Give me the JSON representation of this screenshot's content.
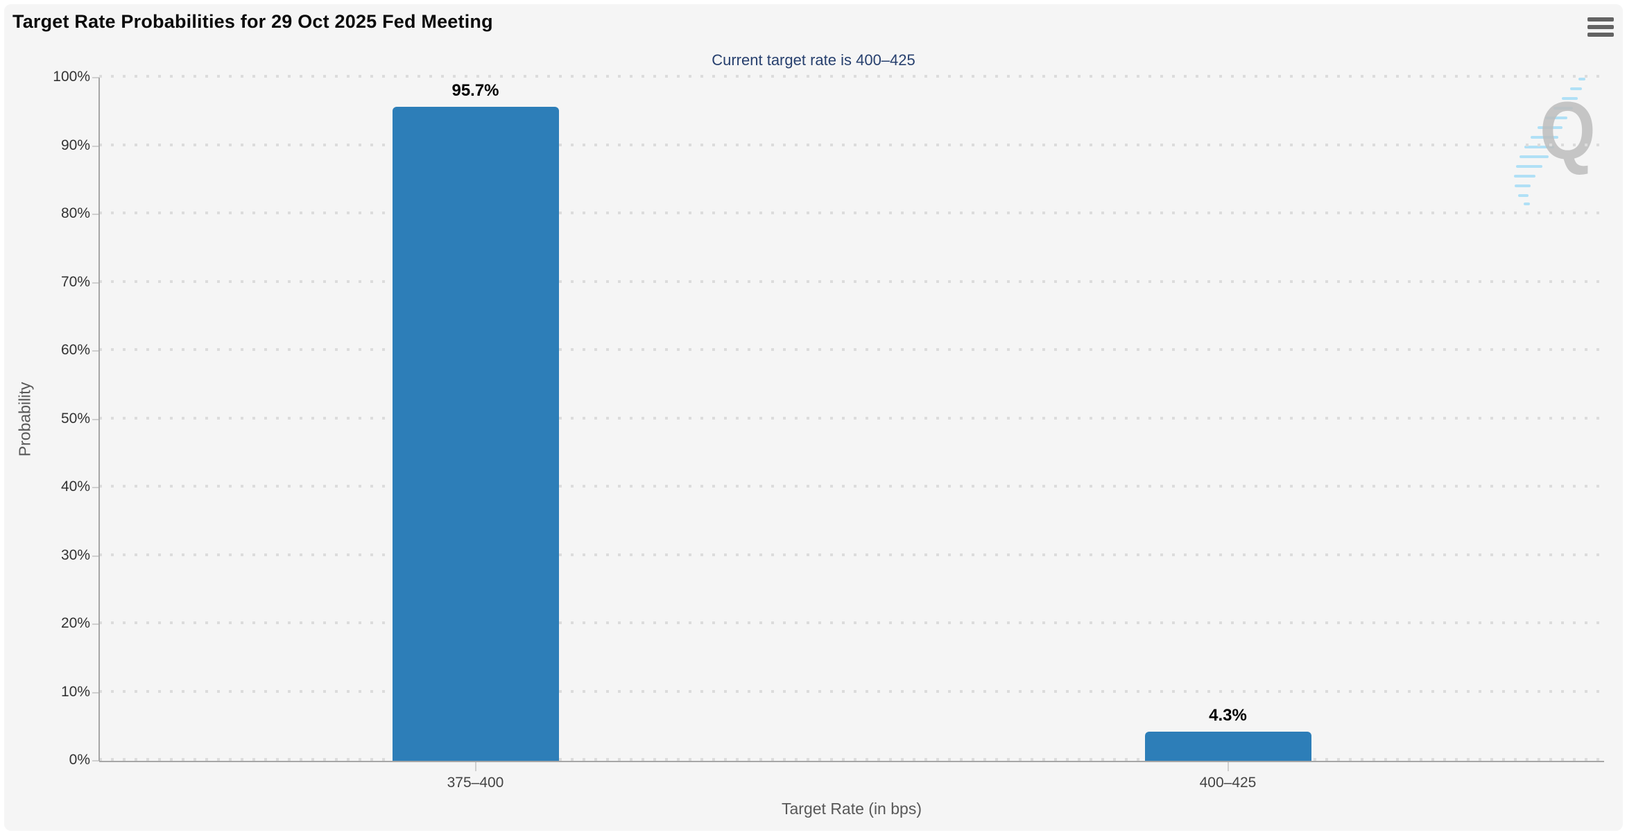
{
  "toolbar": {
    "menu_icon": "hamburger-menu-icon"
  },
  "watermark": {
    "letter": "Q",
    "description": "quikstrike-logo-watermark"
  },
  "chart_data": {
    "type": "bar",
    "title": "Target Rate Probabilities for 29 Oct 2025 Fed Meeting",
    "subtitle": "Current target rate is 400–425",
    "categories": [
      "375–400",
      "400–425"
    ],
    "values": [
      95.7,
      4.3
    ],
    "value_labels": [
      "95.7%",
      "4.3%"
    ],
    "xlabel": "Target Rate (in bps)",
    "ylabel": "Probability",
    "ylim": [
      0,
      100
    ],
    "ytick_step": 10,
    "yticks": [
      "0%",
      "10%",
      "20%",
      "30%",
      "40%",
      "50%",
      "60%",
      "70%",
      "80%",
      "90%",
      "100%"
    ],
    "legend": "none",
    "grid": "horizontal-dotted",
    "colors": {
      "bar": "#2d7eb8",
      "subtitle_text": "#27406e",
      "background": "#f5f5f5",
      "axis_line": "#a6a6a6",
      "grid_dot": "#dcdcdc",
      "tick": "#cfcfcf",
      "watermark_q": "#bdbdbd",
      "watermark_stripes": "#a9def7",
      "menu_icon": "#636363"
    }
  }
}
